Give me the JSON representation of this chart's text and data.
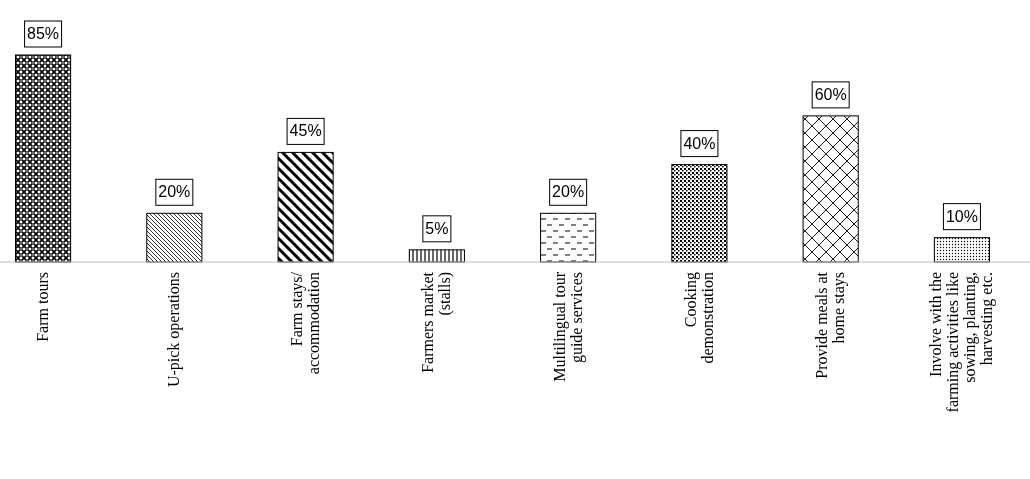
{
  "chart_data": {
    "type": "bar",
    "categories": [
      "Farm tours",
      "U-pick operations",
      "Farm stays/ accommodation",
      "Farmers market (stalls)",
      "Multilingual tour guide services",
      "Cooking demonstration",
      "Provide meals at home stays",
      "Involve with the farming activities like sowing, planting, harvesting etc."
    ],
    "values": [
      85,
      20,
      45,
      5,
      20,
      40,
      60,
      10
    ],
    "value_labels": [
      "85%",
      "20%",
      "45%",
      "5%",
      "20%",
      "40%",
      "60%",
      "10%"
    ],
    "color": "#000000"
  }
}
